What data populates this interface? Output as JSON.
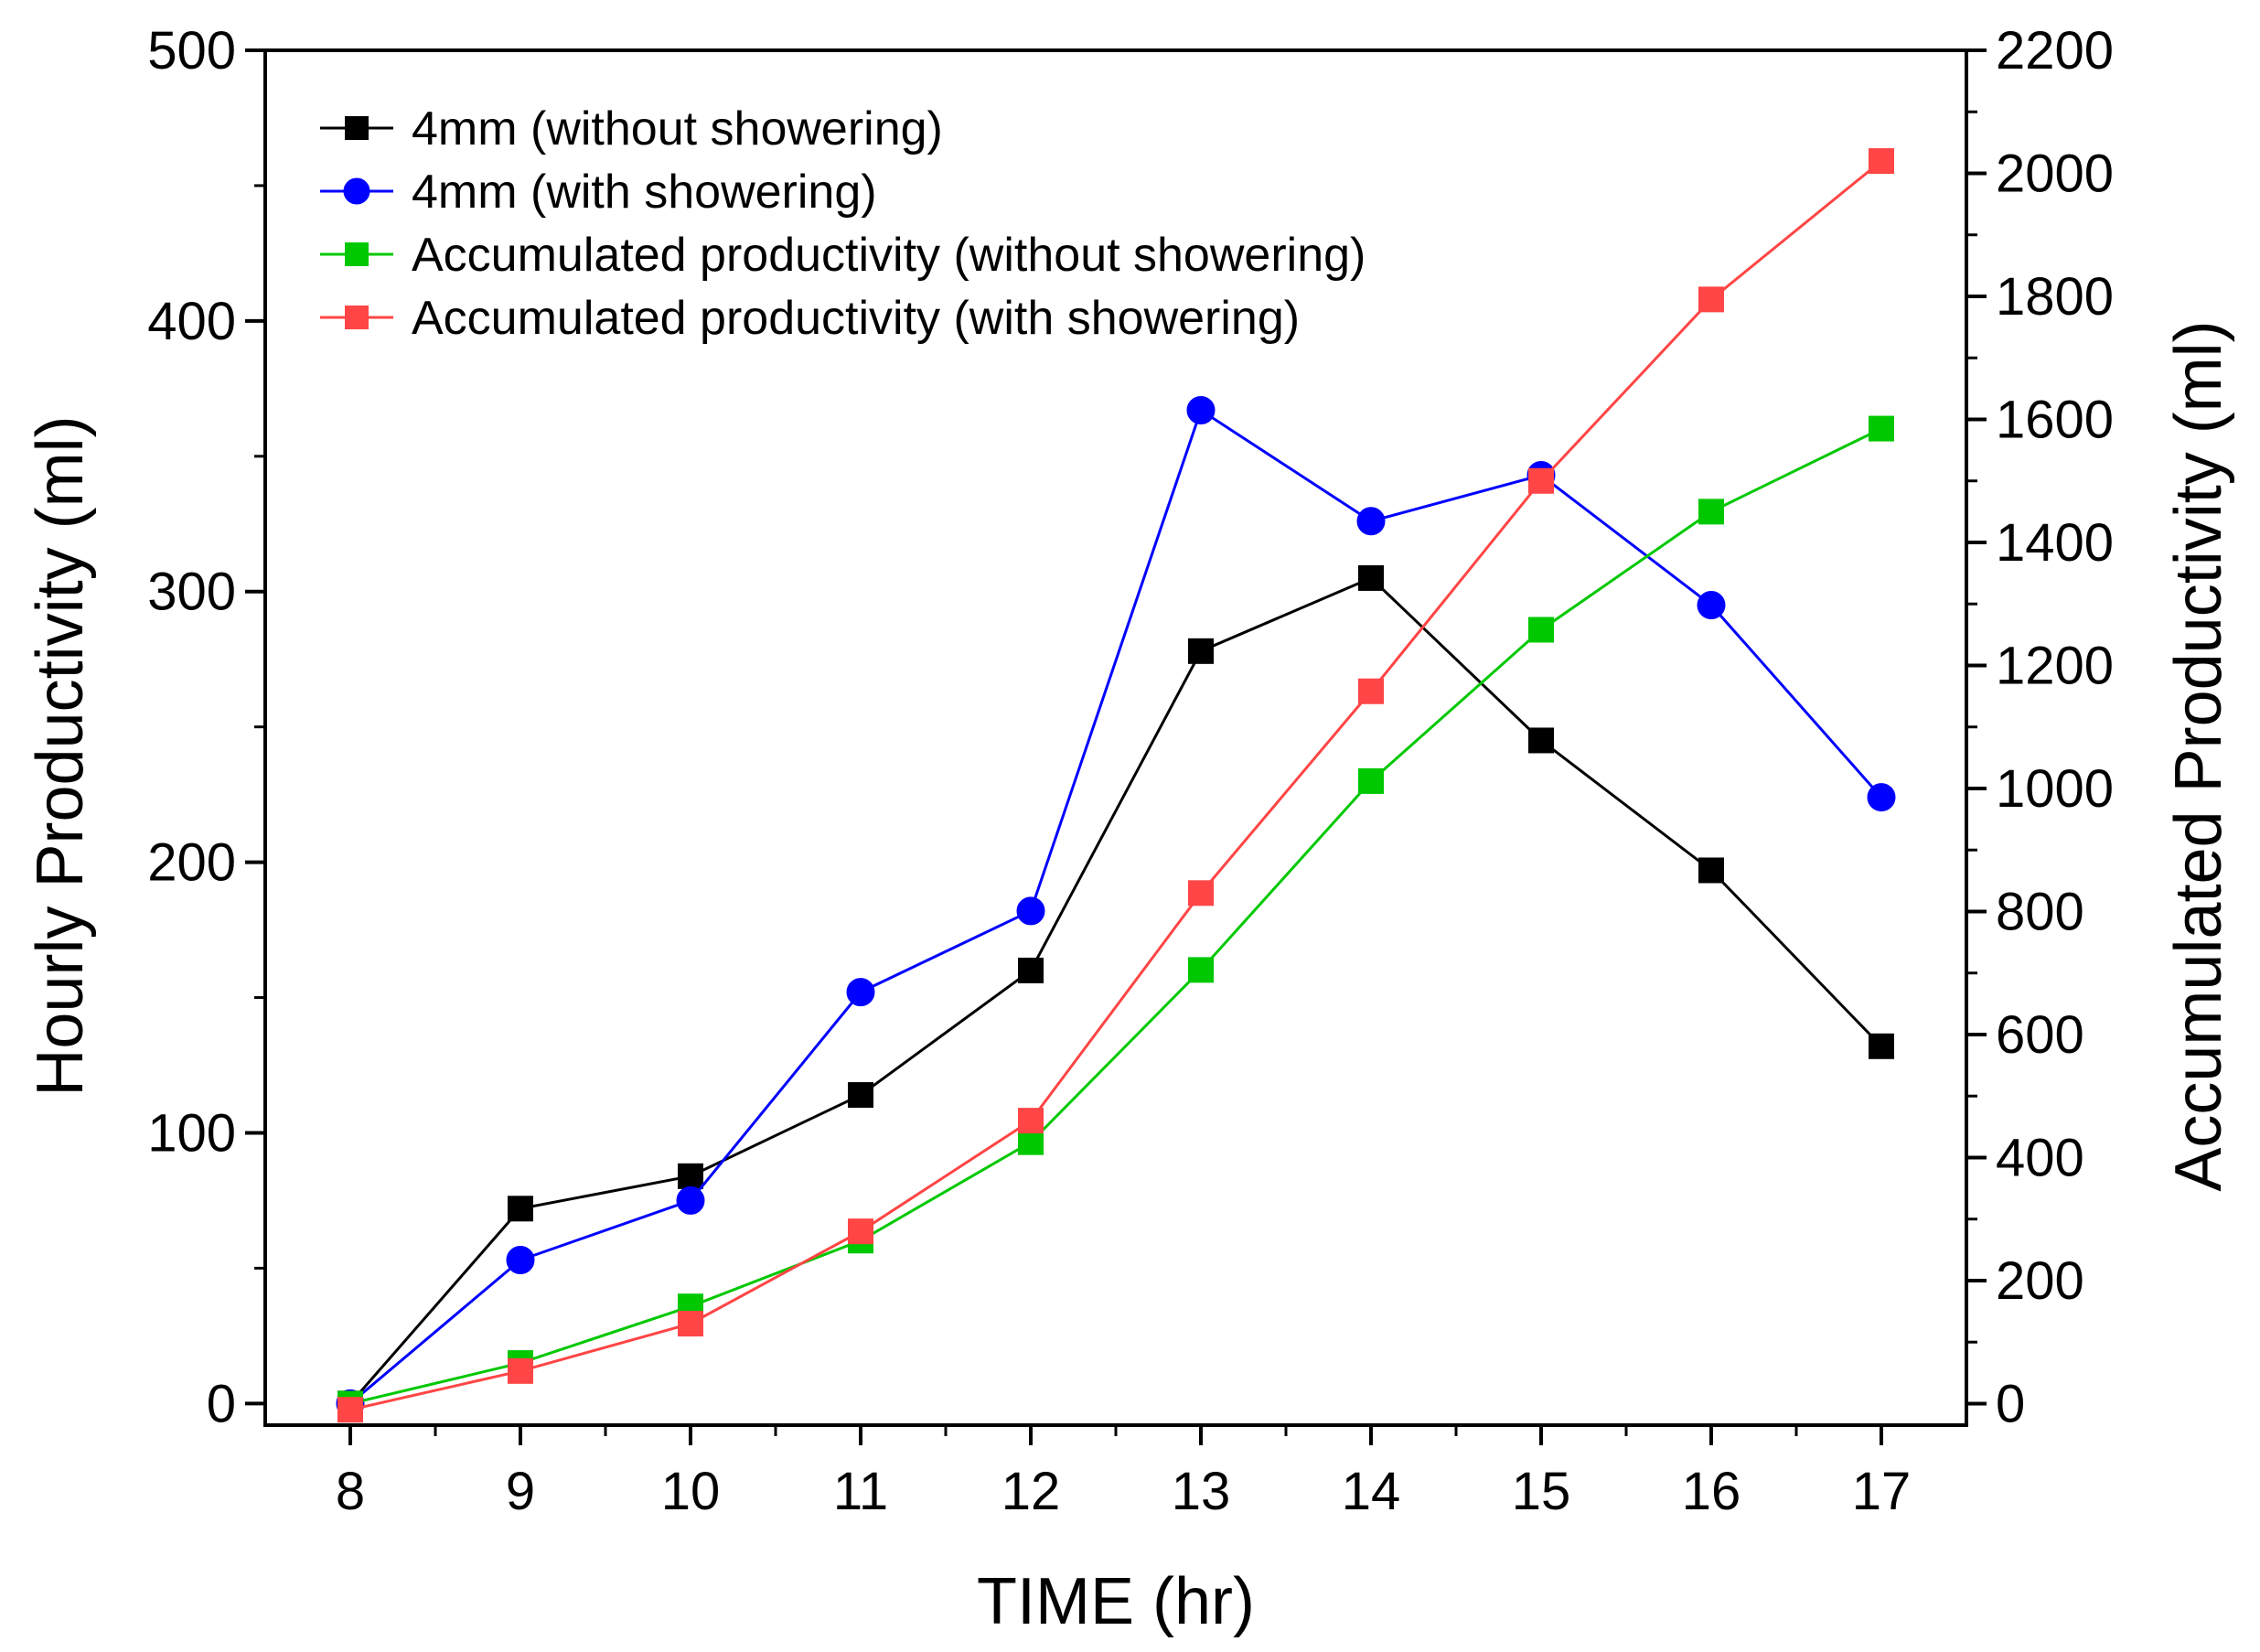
{
  "chart_data": {
    "type": "line",
    "title": "",
    "xlabel": "TIME (hr)",
    "ylabel": "Hourly Productivity (ml)",
    "y2label": "Accumulated Productivity (ml)",
    "x": [
      8,
      9,
      10,
      11,
      12,
      13,
      14,
      15,
      16,
      17
    ],
    "xticks": [
      "8",
      "9",
      "10",
      "11",
      "12",
      "13",
      "14",
      "15",
      "16",
      "17"
    ],
    "xlim": [
      7.5,
      17.5
    ],
    "ylim": [
      -8,
      500
    ],
    "y2lim": [
      -35,
      2200
    ],
    "yticks": [
      "0",
      "100",
      "200",
      "300",
      "400",
      "500"
    ],
    "y2ticks": [
      "0",
      "200",
      "400",
      "600",
      "800",
      "1000",
      "1200",
      "1400",
      "1600",
      "1800",
      "2000",
      "2200"
    ],
    "legend_position": "top-left",
    "series": [
      {
        "name": "4mm (without showering)",
        "axis": "left",
        "color": "#000000",
        "marker": "square",
        "values": [
          0,
          72,
          84,
          114,
          160,
          278,
          305,
          245,
          197,
          132
        ]
      },
      {
        "name": "4mm (with showering)",
        "axis": "left",
        "color": "#0000ff",
        "marker": "circle",
        "values": [
          0,
          53,
          75,
          152,
          182,
          367,
          326,
          343,
          295,
          224
        ]
      },
      {
        "name": "Accumulated productivity (without showering)",
        "axis": "right",
        "color": "#00c800",
        "marker": "square",
        "values": [
          0,
          66,
          158,
          265,
          425,
          705,
          1012,
          1258,
          1450,
          1585
        ]
      },
      {
        "name": "Accumulated productivity (with showering)",
        "axis": "right",
        "color": "#ff4545",
        "marker": "square",
        "values": [
          -10,
          53,
          130,
          280,
          460,
          830,
          1158,
          1500,
          1795,
          2020
        ]
      }
    ]
  }
}
